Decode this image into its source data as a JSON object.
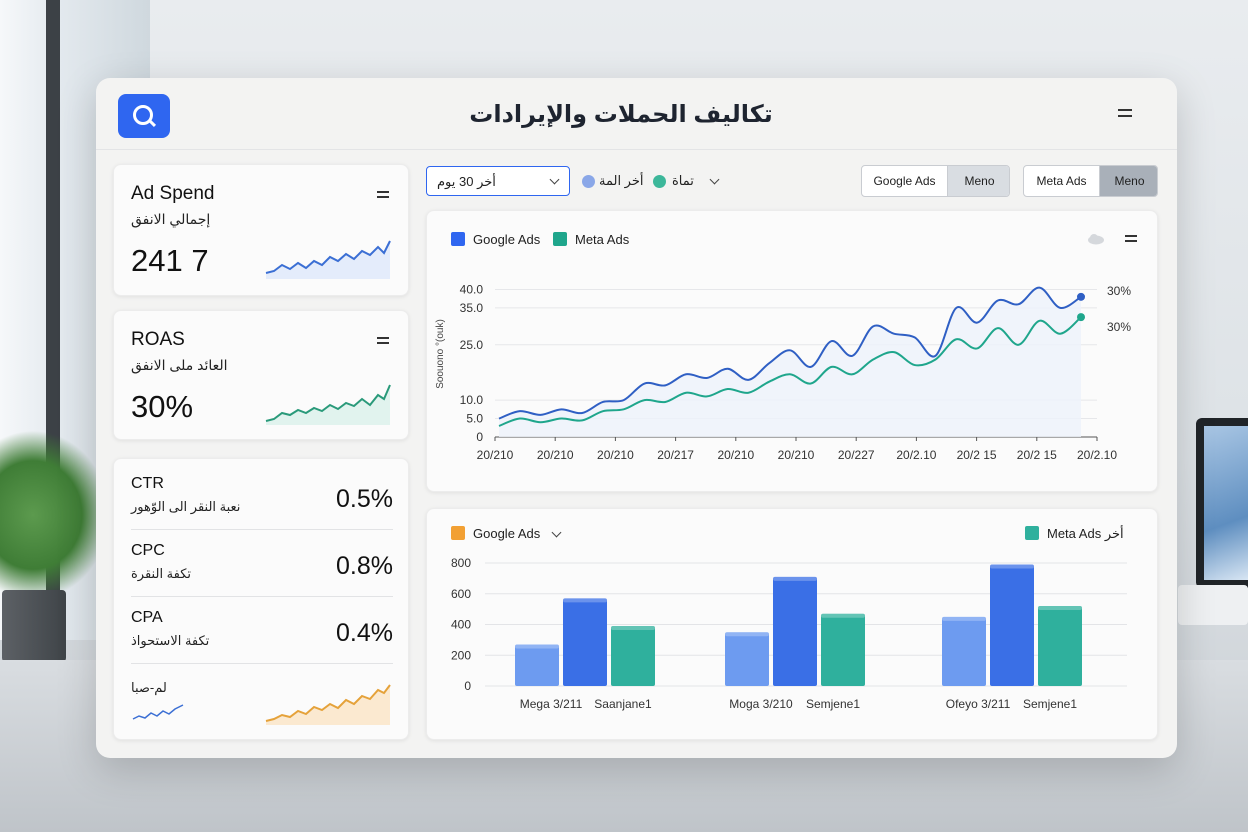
{
  "header": {
    "title": "تكاليف الحملات والإيرادات",
    "logo_icon": "search-icon",
    "menu_icon": "menu-icon"
  },
  "kpis": [
    {
      "title": "Ad Spend",
      "subtitle": "إجمالي الانفق",
      "value": "241 7",
      "spark_color": "#3b6fd4"
    },
    {
      "title": "ROAS",
      "subtitle": "العائد ملى الانفق",
      "value": "30%",
      "spark_color": "#2a9a7a"
    }
  ],
  "metrics": [
    {
      "name": "CTR",
      "subtitle": "نعبة النقر الى الوّهور",
      "value": "0.5%"
    },
    {
      "name": "CPC",
      "subtitle": "تكفة النقرة",
      "value": "0.8%"
    },
    {
      "name": "CPA",
      "subtitle": "تكفة الاستحواذ",
      "value": "0.4%"
    }
  ],
  "mini": {
    "label": "لم-صبا",
    "spark_color_1": "#3b6fd4",
    "spark_color_2": "#e5a23a"
  },
  "filters": {
    "range": "أخر 30 يوم",
    "dot1_label": "أخر المة",
    "dot1_color": "#8aa7e8",
    "dot2_label": "تماة",
    "dot2_color": "#3cb79a",
    "toggle1": {
      "left": "Google Ads",
      "right": "Meno"
    },
    "toggle2": {
      "left": "Meta Ads",
      "right": "Meno"
    }
  },
  "line_card": {
    "legend": [
      {
        "name": "Google Ads",
        "color": "#2f66f0"
      },
      {
        "name": "Meta Ads",
        "color": "#1fa68c"
      }
    ],
    "ylabel": "Soouono °(ouk)",
    "end_labels": [
      "30%",
      "30%"
    ]
  },
  "bar_card": {
    "legend_left": "Google Ads",
    "legend_left_color": "#f2a033",
    "legend_right": "Meta Ads",
    "legend_right_suffix": "أخر"
  },
  "chart_data": [
    {
      "type": "line",
      "title": "",
      "xlabel": "",
      "ylabel": "Soouono °(ouk)",
      "ylim": [
        0,
        45
      ],
      "yticks": [
        "0",
        "5.0",
        "10.0",
        "25.0",
        "35.0",
        "40.0"
      ],
      "x_labels": [
        "20/210",
        "20/210",
        "20/210",
        "20/217",
        "20/210",
        "20/210",
        "20/227",
        "20/2.10",
        "20/2 15",
        "20/2 15",
        "20/2.10"
      ],
      "series": [
        {
          "name": "Google Ads",
          "color": "#2f5fc4",
          "values": [
            5.0,
            7.0,
            6.0,
            7.5,
            6.5,
            9.5,
            10.0,
            14.5,
            14.0,
            17.0,
            16.0,
            18.5,
            15.5,
            20.0,
            23.5,
            19.0,
            26.0,
            22.0,
            30.0,
            28.0,
            27.0,
            22.0,
            35.0,
            31.0,
            37.0,
            36.0,
            40.5,
            35.0,
            38.0
          ]
        },
        {
          "name": "Meta Ads",
          "color": "#1fa68c",
          "values": [
            3.0,
            5.0,
            4.0,
            5.0,
            4.5,
            7.0,
            7.5,
            10.0,
            9.5,
            12.0,
            11.0,
            13.0,
            12.0,
            15.0,
            17.0,
            14.5,
            19.0,
            17.0,
            21.0,
            23.0,
            19.5,
            21.0,
            26.5,
            24.0,
            29.5,
            25.0,
            31.5,
            28.0,
            32.5
          ]
        }
      ]
    },
    {
      "type": "bar",
      "title": "",
      "ylim": [
        0,
        800
      ],
      "yticks": [
        "0",
        "200",
        "400",
        "600",
        "800"
      ],
      "categories": [
        "Mega 3/211 Saanjane1",
        "Moga 3/210 Semjene1",
        "Ofeyo 3/211 Semjene1"
      ],
      "x_labels": [
        "Mega 3/211",
        "Saanjane1",
        "Moga 3/210",
        "Semjene1",
        "Ofeyo 3/211",
        "Semjene1"
      ],
      "series": [
        {
          "color": "#6d9bf0",
          "values": [
            270,
            350,
            450
          ]
        },
        {
          "name": "Google Ads",
          "color": "#3a6fe6",
          "values": [
            570,
            710,
            790
          ]
        },
        {
          "name": "Meta Ads",
          "color": "#2fb09d",
          "values": [
            390,
            470,
            520
          ]
        }
      ]
    }
  ]
}
